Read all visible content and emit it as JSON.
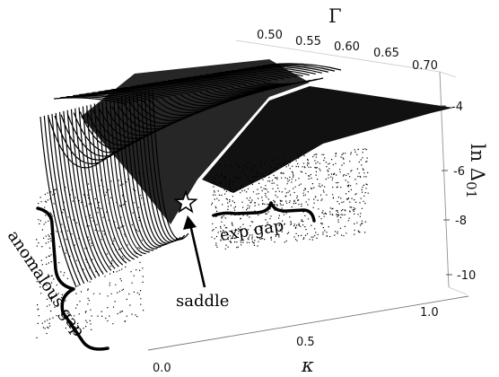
{
  "chart_data": {
    "type": "surface-3d",
    "x_axis": {
      "label": "κ",
      "ticks": [
        "0.0",
        "0.5",
        "1.0"
      ],
      "range": [
        0,
        1
      ]
    },
    "y_axis": {
      "label": "Γ",
      "ticks": [
        "0.50",
        "0.55",
        "0.60",
        "0.65",
        "0.70"
      ],
      "range": [
        0.5,
        0.7
      ]
    },
    "z_axis": {
      "label": "ln Δ01",
      "ticks": [
        "-4",
        "-6",
        "-8",
        "-10"
      ],
      "range": [
        -11,
        -3
      ]
    },
    "annotations": [
      {
        "text": "anomalous gap"
      },
      {
        "text": "exp gap"
      },
      {
        "text": "saddle"
      }
    ],
    "marker": {
      "shape": "star",
      "label_ref": "saddle"
    }
  }
}
